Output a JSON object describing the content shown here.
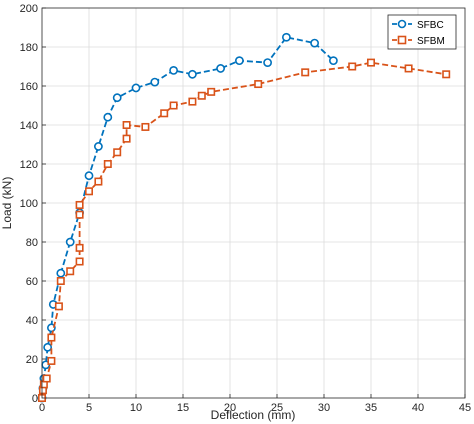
{
  "chart_data": {
    "type": "line",
    "xlabel": "Deflection (mm)",
    "ylabel": "Load (kN)",
    "xlim": [
      0,
      45
    ],
    "ylim": [
      0,
      200
    ],
    "xticks": [
      0,
      5,
      10,
      15,
      20,
      25,
      30,
      35,
      40,
      45
    ],
    "yticks": [
      0,
      20,
      40,
      60,
      80,
      100,
      120,
      140,
      160,
      180,
      200
    ],
    "grid": true,
    "legend_position": "top-right",
    "series": [
      {
        "name": "SFBC",
        "color": "#0072BD",
        "marker": "circle",
        "line_style": "dashed",
        "x": [
          0,
          0.1,
          0.2,
          0.4,
          0.6,
          1.0,
          1.2,
          2.0,
          3.0,
          4.0,
          5.0,
          6.0,
          7.0,
          8.0,
          10.0,
          12.0,
          14.0,
          16.0,
          19.0,
          21.0,
          24.0,
          26.0,
          29.0,
          31.0
        ],
        "y": [
          0,
          5,
          10,
          17,
          26,
          36,
          48,
          64,
          80,
          95,
          114,
          129,
          144,
          154,
          159,
          162,
          168,
          166,
          169,
          173,
          172,
          185,
          182,
          173
        ]
      },
      {
        "name": "SFBM",
        "color": "#D95319",
        "marker": "square",
        "line_style": "dashed",
        "x": [
          0,
          0.1,
          0.2,
          0.5,
          1.0,
          1.0,
          1.8,
          2.0,
          3.0,
          4.0,
          4.0,
          4.0,
          4.0,
          5.0,
          6.0,
          7.0,
          8.0,
          9.0,
          9.0,
          11.0,
          13.0,
          14.0,
          16.0,
          17.0,
          18.0,
          23.0,
          28.0,
          33.0,
          35.0,
          39.0,
          43.0
        ],
        "y": [
          0,
          4,
          7,
          10,
          19,
          31,
          47,
          60,
          65,
          70,
          77,
          94,
          99,
          106,
          111,
          120,
          126,
          133,
          140,
          139,
          146,
          150,
          152,
          155,
          157,
          161,
          167,
          170,
          172,
          169,
          166
        ]
      }
    ]
  }
}
